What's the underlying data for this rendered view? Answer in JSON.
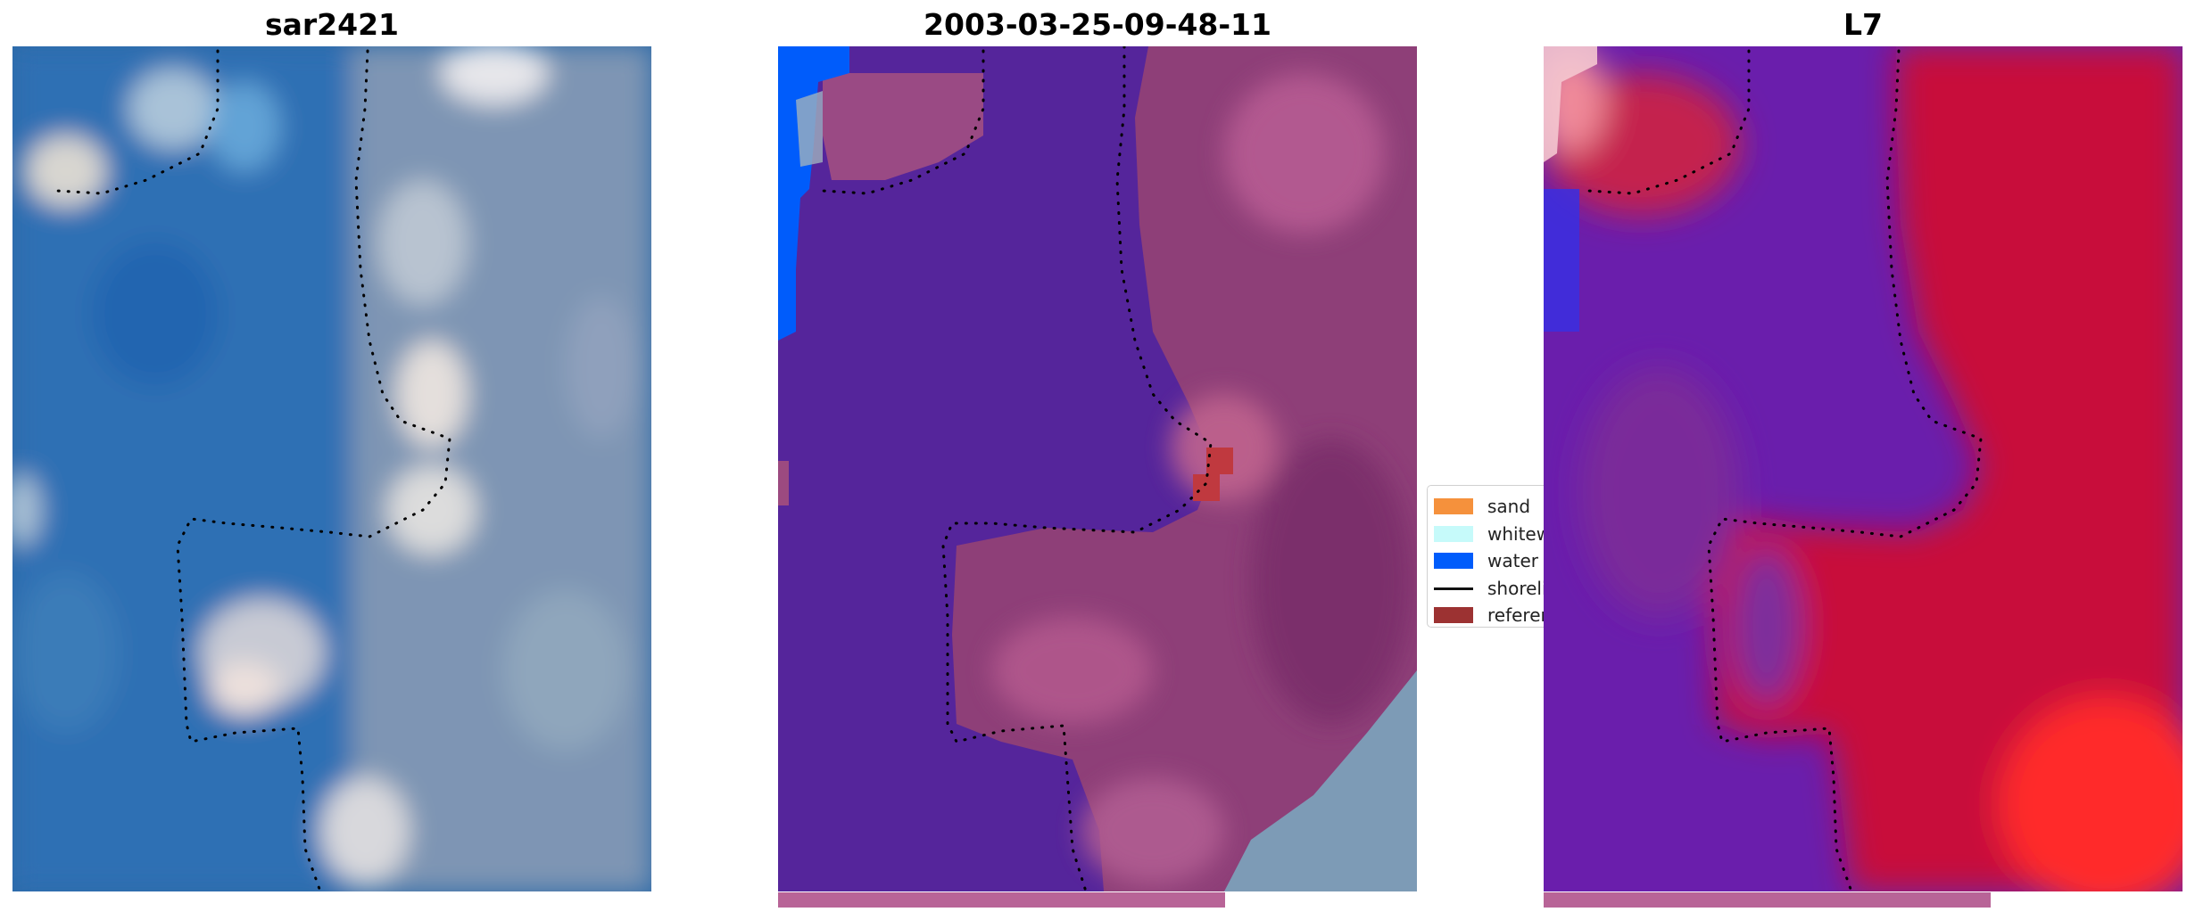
{
  "panels": [
    {
      "title": "sar2421",
      "image": "rgb-satellite-image",
      "progress": null
    },
    {
      "title": "2003-03-25-09-48-11",
      "image": "classified-image",
      "progress": 0.7
    },
    {
      "title": "L7",
      "image": "index-image",
      "progress": 0.7
    }
  ],
  "legend": {
    "items": [
      {
        "label": "sand",
        "color": "#f5913c",
        "kind": "patch"
      },
      {
        "label": "whitewater",
        "color": "#c6fafa",
        "kind": "patch"
      },
      {
        "label": "water",
        "color": "#005cfb",
        "kind": "patch"
      },
      {
        "label": "shoreline",
        "color": "#111111",
        "kind": "line"
      },
      {
        "label": "reference shoreline",
        "color": "#9c3232",
        "kind": "patch"
      }
    ]
  },
  "colors": {
    "water_class": "#55259b",
    "land_class": "#8e3f78",
    "progress_bar": "#b86497",
    "index_red": "#c8103a",
    "index_purple": "#6a1eac"
  }
}
